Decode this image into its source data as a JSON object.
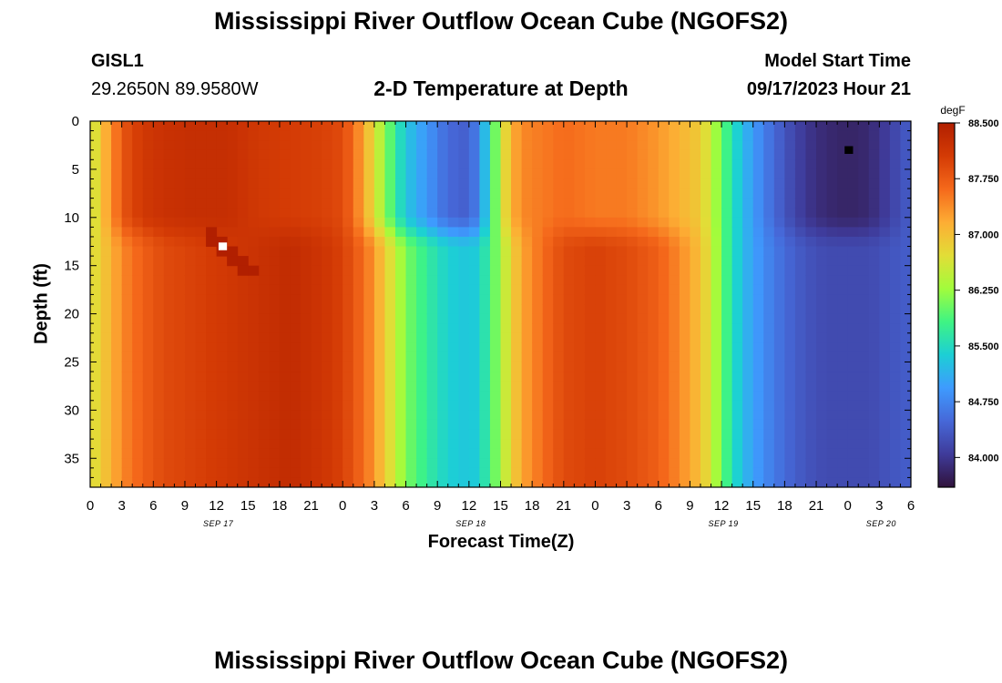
{
  "header": {
    "title": "Mississippi River Outflow Ocean Cube (NGOFS2)",
    "station_id": "GISL1",
    "station_coords": "29.2650N  89.9580W",
    "plot_subtitle": "2-D Temperature at Depth",
    "model_start_label": "Model Start Time",
    "model_start_value": "09/17/2023 Hour 21"
  },
  "footer": {
    "title": "Mississippi River Outflow Ocean Cube (NGOFS2)"
  },
  "chart_data": {
    "type": "heatmap",
    "title": "2-D Temperature at Depth",
    "xlabel": "Forecast Time(Z)",
    "ylabel": "Depth (ft)",
    "x_tick_labels": [
      "0",
      "3",
      "6",
      "9",
      "12",
      "15",
      "18",
      "21",
      "0",
      "3",
      "6",
      "9",
      "12",
      "15",
      "18",
      "21",
      "0",
      "3",
      "6",
      "9",
      "12",
      "15",
      "18",
      "21",
      "0",
      "3",
      "6"
    ],
    "x_range_hours": [
      0,
      78
    ],
    "date_labels": [
      {
        "label": "SEP 17",
        "hour": 12
      },
      {
        "label": "SEP 18",
        "hour": 36
      },
      {
        "label": "SEP 19",
        "hour": 60
      },
      {
        "label": "SEP 20",
        "hour": 75
      }
    ],
    "y_tick_labels": [
      "0",
      "5",
      "10",
      "15",
      "20",
      "25",
      "30",
      "35"
    ],
    "y_range": [
      0,
      38
    ],
    "y_reversed": true,
    "colorbar": {
      "unit": "degF",
      "min": 83.6,
      "max": 88.5,
      "tick_labels": [
        "88.500",
        "87.750",
        "87.000",
        "86.250",
        "85.500",
        "84.750",
        "84.000"
      ],
      "colors": [
        "#30123b",
        "#3f3b9a",
        "#4668d8",
        "#3e9bfe",
        "#1ccfd5",
        "#3ff483",
        "#a2fc3c",
        "#e2dd37",
        "#fdad34",
        "#f5691b",
        "#d43b05",
        "#b11f00"
      ]
    },
    "columns": [
      {
        "hour": 0,
        "top": 86.4,
        "bottom": 86.6
      },
      {
        "hour": 1,
        "top": 87.0,
        "bottom": 86.9
      },
      {
        "hour": 2,
        "top": 87.3,
        "bottom": 87.1
      },
      {
        "hour": 3,
        "top": 87.8,
        "bottom": 87.4
      },
      {
        "hour": 5,
        "top": 88.1,
        "bottom": 87.7
      },
      {
        "hour": 7,
        "top": 88.2,
        "bottom": 87.9
      },
      {
        "hour": 10,
        "top": 88.25,
        "bottom": 88.0
      },
      {
        "hour": 13,
        "top": 88.25,
        "bottom": 88.1
      },
      {
        "hour": 16,
        "top": 88.1,
        "bottom": 88.2
      },
      {
        "hour": 19,
        "top": 88.05,
        "bottom": 88.3
      },
      {
        "hour": 22,
        "top": 88.0,
        "bottom": 88.15
      },
      {
        "hour": 24,
        "top": 87.9,
        "bottom": 88.0
      },
      {
        "hour": 25,
        "top": 87.6,
        "bottom": 87.8
      },
      {
        "hour": 26,
        "top": 87.2,
        "bottom": 87.6
      },
      {
        "hour": 27,
        "top": 86.7,
        "bottom": 87.3
      },
      {
        "hour": 28,
        "top": 86.2,
        "bottom": 86.9
      },
      {
        "hour": 29,
        "top": 85.7,
        "bottom": 86.5
      },
      {
        "hour": 30,
        "top": 85.3,
        "bottom": 86.1
      },
      {
        "hour": 32,
        "top": 84.9,
        "bottom": 85.7
      },
      {
        "hour": 34,
        "top": 84.5,
        "bottom": 85.4
      },
      {
        "hour": 36,
        "top": 84.4,
        "bottom": 85.3
      },
      {
        "hour": 37,
        "top": 84.8,
        "bottom": 85.4
      },
      {
        "hour": 38,
        "top": 85.6,
        "bottom": 85.8
      },
      {
        "hour": 39,
        "top": 86.5,
        "bottom": 86.3
      },
      {
        "hour": 40,
        "top": 87.1,
        "bottom": 86.8
      },
      {
        "hour": 41,
        "top": 87.4,
        "bottom": 87.2
      },
      {
        "hour": 43,
        "top": 87.5,
        "bottom": 87.6
      },
      {
        "hour": 45,
        "top": 87.6,
        "bottom": 87.9
      },
      {
        "hour": 48,
        "top": 87.5,
        "bottom": 88.0
      },
      {
        "hour": 51,
        "top": 87.5,
        "bottom": 87.9
      },
      {
        "hour": 54,
        "top": 87.3,
        "bottom": 87.7
      },
      {
        "hour": 56,
        "top": 87.1,
        "bottom": 87.4
      },
      {
        "hour": 58,
        "top": 86.9,
        "bottom": 87.0
      },
      {
        "hour": 59,
        "top": 86.5,
        "bottom": 86.6
      },
      {
        "hour": 60,
        "top": 86.0,
        "bottom": 86.0
      },
      {
        "hour": 61,
        "top": 85.6,
        "bottom": 85.6
      },
      {
        "hour": 62,
        "top": 85.2,
        "bottom": 85.2
      },
      {
        "hour": 64,
        "top": 84.7,
        "bottom": 84.8
      },
      {
        "hour": 66,
        "top": 84.3,
        "bottom": 84.5
      },
      {
        "hour": 68,
        "top": 84.0,
        "bottom": 84.3
      },
      {
        "hour": 70,
        "top": 83.85,
        "bottom": 84.2
      },
      {
        "hour": 72,
        "top": 83.8,
        "bottom": 84.2
      },
      {
        "hour": 74,
        "top": 83.85,
        "bottom": 84.2
      },
      {
        "hour": 76,
        "top": 84.1,
        "bottom": 84.3
      },
      {
        "hour": 78,
        "top": 84.4,
        "bottom": 84.4
      }
    ],
    "mixed_layer_depth_ft": 10,
    "deep_layer_start_ft": 13
  }
}
